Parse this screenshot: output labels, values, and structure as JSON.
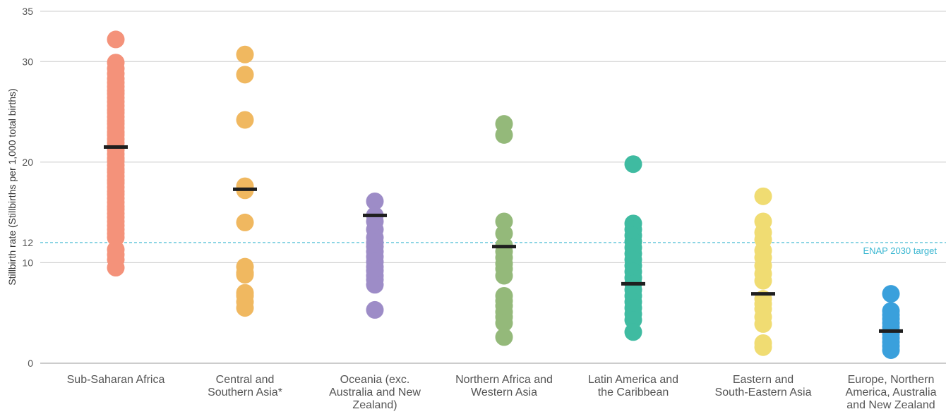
{
  "chart_data": {
    "type": "scatter",
    "ylabel": "Stillbirth rate (Stillbirths per 1,000 total births)",
    "ylim": [
      0,
      35
    ],
    "yticks": [
      0,
      10,
      12,
      20,
      30,
      35
    ],
    "grid": true,
    "reference_line": {
      "value": 12,
      "label": "ENAP 2030 target",
      "color": "#3bb7d1"
    },
    "categories": [
      {
        "label": [
          "Sub-Saharan Africa"
        ],
        "color": "#f4927a",
        "median": 21.5,
        "values": [
          32.2,
          29.9,
          29.3,
          28.8,
          28.3,
          27.9,
          27.5,
          27.1,
          26.8,
          26.4,
          26.0,
          25.6,
          25.2,
          24.9,
          24.5,
          24.1,
          23.8,
          23.4,
          23.0,
          22.7,
          22.3,
          21.9,
          21.5,
          21.2,
          20.8,
          20.4,
          20.1,
          19.7,
          19.3,
          19.0,
          18.6,
          18.2,
          17.9,
          17.5,
          17.1,
          16.8,
          16.4,
          16.0,
          15.6,
          15.3,
          14.9,
          14.5,
          14.1,
          13.7,
          13.3,
          12.9,
          12.5,
          11.3,
          10.8,
          10.3,
          9.5
        ]
      },
      {
        "label": [
          "Central and",
          "Southern Asia*"
        ],
        "color": "#f0b860",
        "median": 17.3,
        "values": [
          30.7,
          28.7,
          24.2,
          17.6,
          17.2,
          14.0,
          9.6,
          9.0,
          8.8,
          7.0,
          6.7,
          6.1,
          5.5
        ]
      },
      {
        "label": [
          "Oceania (exc.",
          "Australia and New",
          "Zealand)"
        ],
        "color": "#9d8cc7",
        "median": 14.7,
        "values": [
          16.1,
          14.7,
          14.1,
          13.3,
          12.5,
          12.0,
          11.6,
          11.1,
          10.6,
          10.1,
          9.6,
          9.2,
          8.7,
          8.3,
          7.8,
          5.3
        ]
      },
      {
        "label": [
          "Northern Africa and",
          "Western Asia"
        ],
        "color": "#94b97a",
        "median": 11.6,
        "values": [
          23.8,
          22.7,
          14.1,
          12.9,
          11.7,
          11.1,
          10.5,
          9.9,
          9.4,
          8.7,
          6.7,
          6.2,
          5.7,
          5.1,
          4.6,
          4.0,
          2.6
        ]
      },
      {
        "label": [
          "Latin America and",
          "the Caribbean"
        ],
        "color": "#3fbba1",
        "median": 7.9,
        "values": [
          19.8,
          13.9,
          13.3,
          12.7,
          12.1,
          11.5,
          10.9,
          10.3,
          9.7,
          9.1,
          8.5,
          7.9,
          7.3,
          6.7,
          6.1,
          5.5,
          4.9,
          4.3,
          3.1
        ]
      },
      {
        "label": [
          "Eastern and",
          "South-Eastern Asia"
        ],
        "color": "#f0dc72",
        "median": 6.9,
        "values": [
          16.6,
          14.1,
          13.0,
          12.3,
          11.2,
          10.5,
          9.7,
          8.9,
          8.2,
          6.4,
          5.9,
          5.4,
          4.6,
          3.9,
          2.0,
          1.6
        ]
      },
      {
        "label": [
          "Europe, Northern",
          "America, Australia",
          "and New Zealand"
        ],
        "color": "#3aa0dc",
        "median": 3.2,
        "values": [
          6.9,
          5.2,
          4.8,
          4.4,
          4.0,
          3.6,
          3.2,
          2.9,
          2.5,
          2.1,
          1.7,
          1.3
        ]
      }
    ]
  }
}
